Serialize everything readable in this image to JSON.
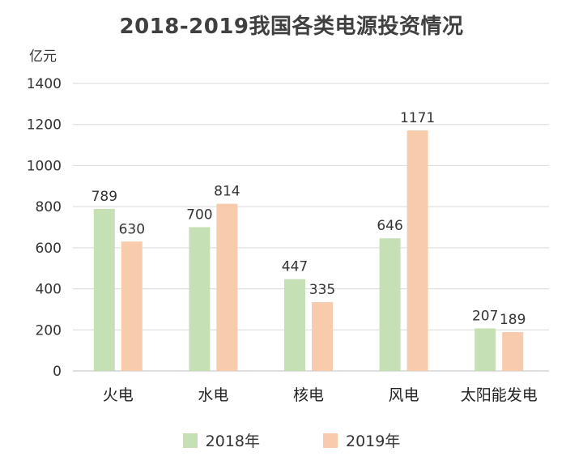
{
  "chart_data": {
    "type": "bar",
    "title": "2018-2019我国各类电源投资情况",
    "ylabel": "亿元",
    "xlabel": "",
    "ylim": [
      0,
      1400
    ],
    "yticks": [
      "0",
      "200",
      "400",
      "600",
      "800",
      "1000",
      "1200",
      "1400"
    ],
    "categories": [
      "火电",
      "水电",
      "核电",
      "风电",
      "太阳能发电"
    ],
    "series": [
      {
        "name": "2018年",
        "color": "#c5e0b4",
        "values": [
          789,
          700,
          447,
          646,
          207
        ]
      },
      {
        "name": "2019年",
        "color": "#f8cbad",
        "values": [
          630,
          814,
          335,
          1171,
          189
        ]
      }
    ],
    "grid": true,
    "legend_position": "bottom"
  }
}
